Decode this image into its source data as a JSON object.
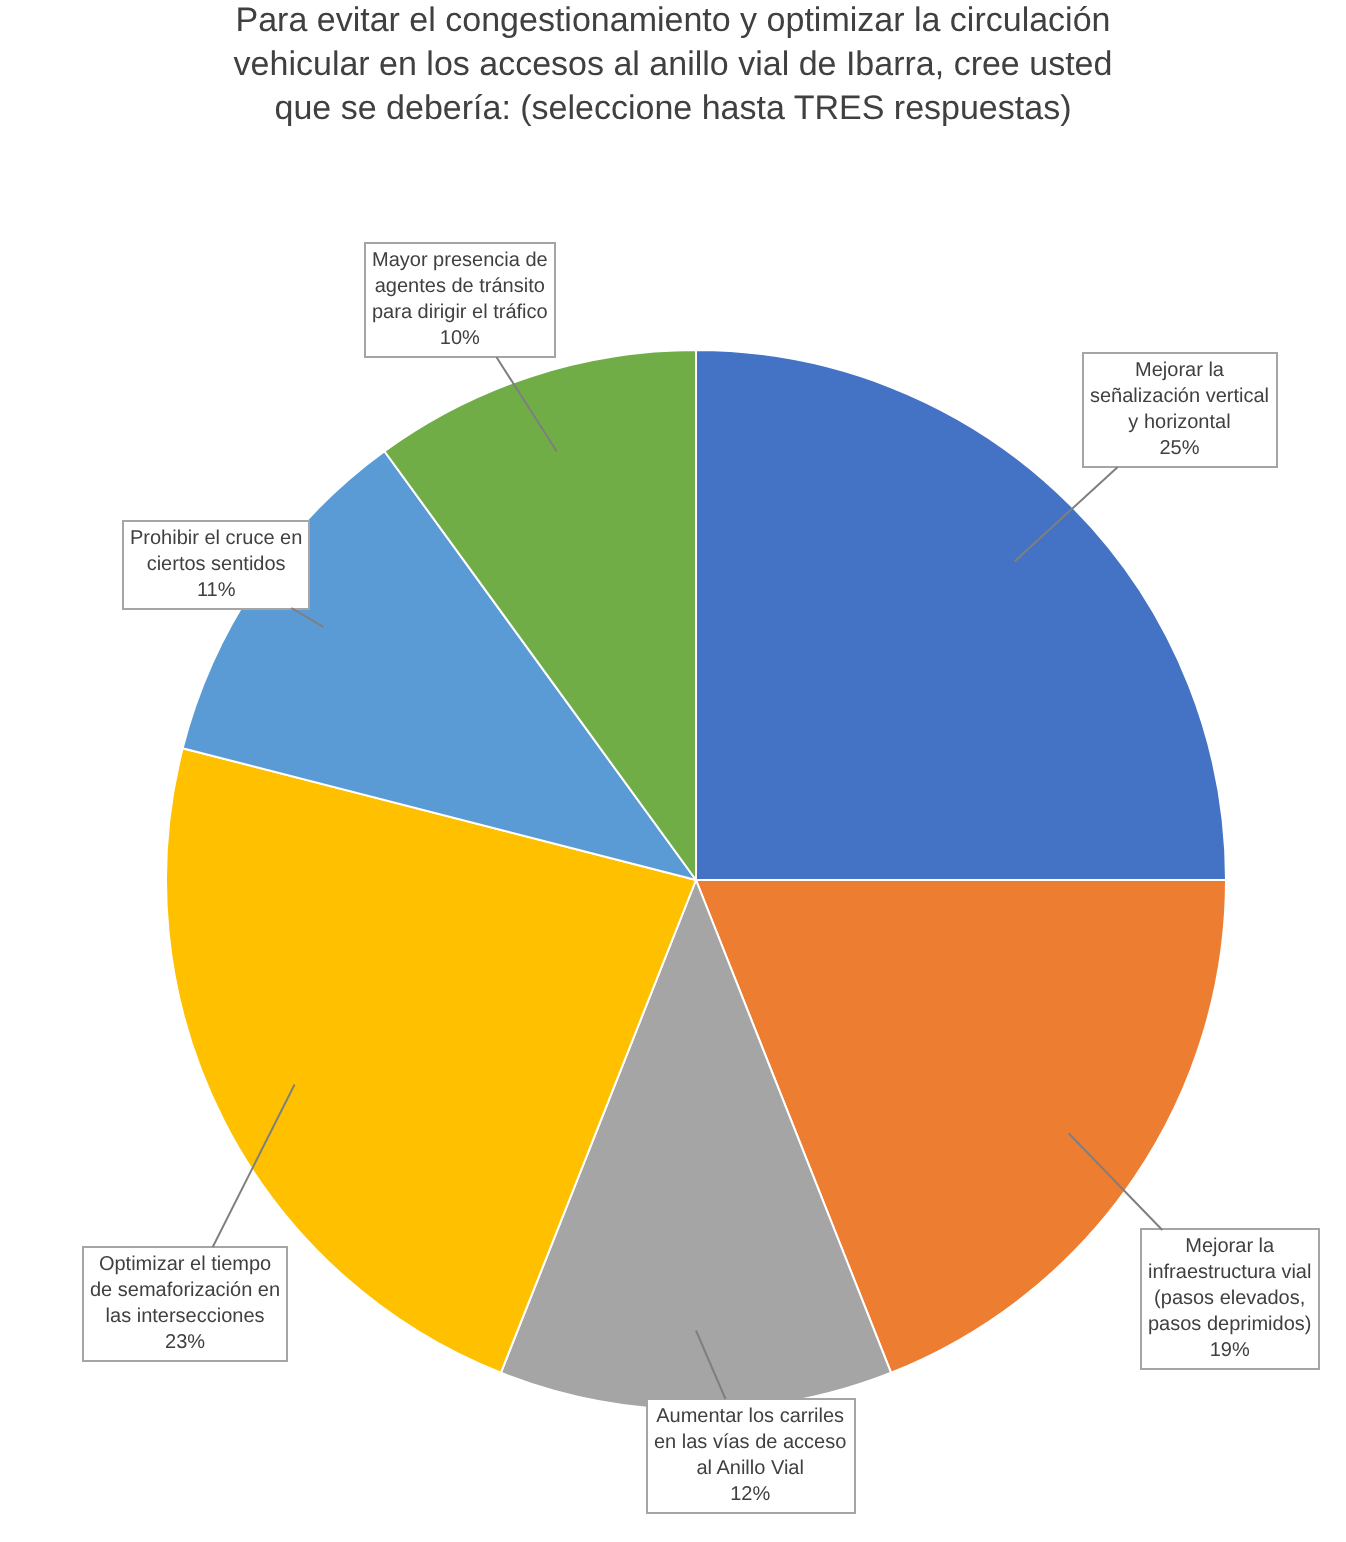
{
  "chart_data": {
    "type": "pie",
    "title": "Para evitar el congestionamiento y optimizar la circulación\nvehicular en los accesos al anillo vial de Ibarra, cree usted\nque se debería: (seleccione hasta TRES respuestas)",
    "categories": [
      "Mejorar la\nseñalización vertical\ny horizontal",
      "Mejorar la\ninfraestructura vial\n(pasos elevados,\npasos deprimidos)",
      "Aumentar los carriles\nen las vías de acceso\nal Anillo Vial",
      "Optimizar el tiempo\nde semaforización en\nlas intersecciones",
      "Prohibir el cruce en\nciertos sentidos",
      "Mayor presencia de\nagentes de tránsito\npara dirigir el tráfico"
    ],
    "values": [
      25,
      19,
      12,
      23,
      11,
      10
    ],
    "value_labels": [
      "25%",
      "19%",
      "12%",
      "23%",
      "11%",
      "10%"
    ],
    "colors": [
      "#4472c4",
      "#ed7d31",
      "#a5a5a5",
      "#ffc000",
      "#5b9bd5",
      "#70ad47"
    ],
    "legend": false
  }
}
